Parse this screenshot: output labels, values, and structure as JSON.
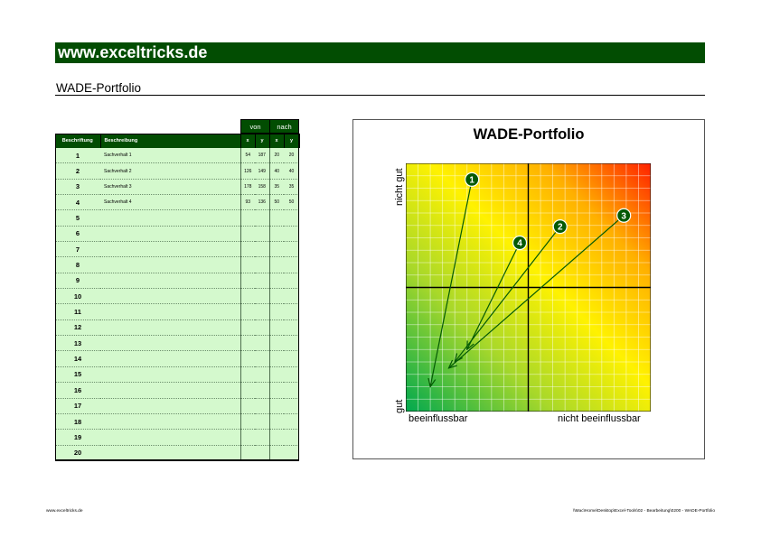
{
  "header": {
    "site": "www.exceltricks.de",
    "subtitle": "WADE-Portfolio"
  },
  "table": {
    "group_headers": {
      "von": "von",
      "nach": "nach"
    },
    "columns": {
      "label": "Beschriftung",
      "description": "Beschreibung",
      "x": "x",
      "y": "y"
    },
    "rows": [
      {
        "num": "1",
        "desc": "Sachverhalt 1",
        "vx": "54",
        "vy": "187",
        "nx": "20",
        "ny": "20"
      },
      {
        "num": "2",
        "desc": "Sachverhalt 2",
        "vx": "126",
        "vy": "149",
        "nx": "40",
        "ny": "40"
      },
      {
        "num": "3",
        "desc": "Sachverhalt 3",
        "vx": "178",
        "vy": "158",
        "nx": "35",
        "ny": "35"
      },
      {
        "num": "4",
        "desc": "Sachverhalt 4",
        "vx": "93",
        "vy": "136",
        "nx": "50",
        "ny": "50"
      },
      {
        "num": "5",
        "desc": "",
        "vx": "",
        "vy": "",
        "nx": "",
        "ny": ""
      },
      {
        "num": "6",
        "desc": "",
        "vx": "",
        "vy": "",
        "nx": "",
        "ny": ""
      },
      {
        "num": "7",
        "desc": "",
        "vx": "",
        "vy": "",
        "nx": "",
        "ny": ""
      },
      {
        "num": "8",
        "desc": "",
        "vx": "",
        "vy": "",
        "nx": "",
        "ny": ""
      },
      {
        "num": "9",
        "desc": "",
        "vx": "",
        "vy": "",
        "nx": "",
        "ny": ""
      },
      {
        "num": "10",
        "desc": "",
        "vx": "",
        "vy": "",
        "nx": "",
        "ny": ""
      },
      {
        "num": "11",
        "desc": "",
        "vx": "",
        "vy": "",
        "nx": "",
        "ny": ""
      },
      {
        "num": "12",
        "desc": "",
        "vx": "",
        "vy": "",
        "nx": "",
        "ny": ""
      },
      {
        "num": "13",
        "desc": "",
        "vx": "",
        "vy": "",
        "nx": "",
        "ny": ""
      },
      {
        "num": "14",
        "desc": "",
        "vx": "",
        "vy": "",
        "nx": "",
        "ny": ""
      },
      {
        "num": "15",
        "desc": "",
        "vx": "",
        "vy": "",
        "nx": "",
        "ny": ""
      },
      {
        "num": "16",
        "desc": "",
        "vx": "",
        "vy": "",
        "nx": "",
        "ny": ""
      },
      {
        "num": "17",
        "desc": "",
        "vx": "",
        "vy": "",
        "nx": "",
        "ny": ""
      },
      {
        "num": "18",
        "desc": "",
        "vx": "",
        "vy": "",
        "nx": "",
        "ny": ""
      },
      {
        "num": "19",
        "desc": "",
        "vx": "",
        "vy": "",
        "nx": "",
        "ny": ""
      },
      {
        "num": "20",
        "desc": "",
        "vx": "",
        "vy": "",
        "nx": "",
        "ny": ""
      }
    ]
  },
  "chart_data": {
    "type": "scatter",
    "title": "WADE-Portfolio",
    "xlabel_left": "beeinflussbar",
    "xlabel_right": "nicht beeinflussbar",
    "ylabel_bottom": "gut",
    "ylabel_top": "nicht gut",
    "xlim": [
      0,
      200
    ],
    "ylim": [
      0,
      200
    ],
    "quadrant_split": [
      100,
      100
    ],
    "grid": true,
    "marker_color": "#045a04",
    "arrows": [
      {
        "label": "1",
        "from": [
          54,
          187
        ],
        "to": [
          20,
          20
        ]
      },
      {
        "label": "2",
        "from": [
          126,
          149
        ],
        "to": [
          40,
          40
        ]
      },
      {
        "label": "3",
        "from": [
          178,
          158
        ],
        "to": [
          35,
          35
        ]
      },
      {
        "label": "4",
        "from": [
          93,
          136
        ],
        "to": [
          50,
          50
        ]
      }
    ]
  },
  "footer": {
    "left": "www.exceltricks.de",
    "right": "\\\\Mac\\Home\\Desktop\\Excel-Tools\\02 - Bearbeitung\\0200 - WADE-Portfolio"
  }
}
